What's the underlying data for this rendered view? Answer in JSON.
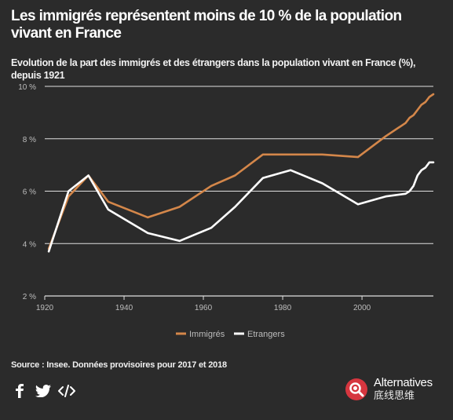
{
  "header": {
    "title": "Les immigrés représentent moins de 10 % de la population vivant en France",
    "subtitle": "Evolution de la part des immigrés et des étrangers dans la population vivant en France (%), depuis 1921"
  },
  "footer": {
    "source": "Source : Insee. Données provisoires pour 2017 et 2018",
    "share_icons": [
      "facebook-icon",
      "twitter-icon",
      "embed-code-icon"
    ],
    "brand_line1": "Alternatives",
    "brand_line2": "底线思维"
  },
  "colors": {
    "background": "#2b2b2b",
    "immigres": "#d4874a",
    "etrangers": "#ffffff",
    "grid": "#e0e0e0",
    "brand": "#d6363f"
  },
  "chart_data": {
    "type": "line",
    "title": "Les immigrés représentent moins de 10 % de la population vivant en France",
    "subtitle": "Evolution de la part des immigrés et des étrangers dans la population vivant en France (%), depuis 1921",
    "xlabel": "",
    "ylabel": "",
    "xlim": [
      1920,
      2018
    ],
    "ylim": [
      2,
      10
    ],
    "x_ticks": [
      1920,
      1940,
      1960,
      1980,
      2000
    ],
    "y_ticks": [
      2,
      4,
      6,
      8,
      10
    ],
    "y_tick_labels": [
      "2 %",
      "4 %",
      "6 %",
      "8 %",
      "10 %"
    ],
    "grid": "horizontal",
    "legend_position": "bottom-center",
    "series": [
      {
        "name": "Immigrés",
        "color": "#d4874a",
        "x": [
          1921,
          1926,
          1931,
          1936,
          1946,
          1954,
          1962,
          1968,
          1975,
          1982,
          1990,
          1999,
          2006,
          2011,
          2012,
          2013,
          2014,
          2015,
          2016,
          2017,
          2018
        ],
        "y": [
          3.8,
          5.8,
          6.6,
          5.6,
          5.0,
          5.4,
          6.2,
          6.6,
          7.4,
          7.4,
          7.4,
          7.3,
          8.1,
          8.6,
          8.8,
          8.9,
          9.1,
          9.3,
          9.4,
          9.6,
          9.7
        ]
      },
      {
        "name": "Etrangers",
        "color": "#ffffff",
        "x": [
          1921,
          1926,
          1931,
          1936,
          1946,
          1954,
          1962,
          1968,
          1975,
          1982,
          1990,
          1999,
          2006,
          2011,
          2012,
          2013,
          2014,
          2015,
          2016,
          2017,
          2018
        ],
        "y": [
          3.7,
          6.0,
          6.6,
          5.3,
          4.4,
          4.1,
          4.6,
          5.4,
          6.5,
          6.8,
          6.3,
          5.5,
          5.8,
          5.9,
          6.0,
          6.2,
          6.6,
          6.8,
          6.9,
          7.1,
          7.1
        ]
      }
    ]
  }
}
